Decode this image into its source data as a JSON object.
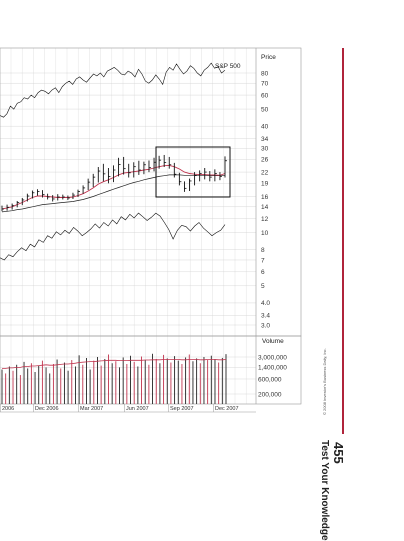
{
  "chart_data": {
    "type": "line",
    "price_axis_label": "Price",
    "volume_axis_label": "Volume",
    "index_label": "S&P 500",
    "price_ticks": [
      80,
      70,
      60,
      50,
      40,
      34,
      30,
      26,
      22,
      19,
      16,
      14,
      12,
      10,
      8,
      7,
      6,
      5,
      4.0,
      3.4,
      3.0
    ],
    "volume_ticks": [
      "3,000,000",
      "1,400,000",
      "600,000",
      "200,000"
    ],
    "volume_tick_values": [
      3000000,
      1400000,
      600000,
      200000
    ],
    "x_ticks": [
      "2006",
      "Dec 2006",
      "Mar 2007",
      "Jun 2007",
      "Sep 2007",
      "Dec 2007"
    ],
    "price_scale": "log",
    "price_range": [
      2.8,
      95
    ],
    "grid": true,
    "candles": [
      {
        "l": 13.2,
        "h": 14.2,
        "c": 13.6
      },
      {
        "l": 13.3,
        "h": 14.4,
        "c": 13.9
      },
      {
        "l": 13.5,
        "h": 14.6,
        "c": 14.2
      },
      {
        "l": 13.9,
        "h": 15.1,
        "c": 14.8
      },
      {
        "l": 14.3,
        "h": 15.7,
        "c": 15.3
      },
      {
        "l": 15.0,
        "h": 16.6,
        "c": 16.1
      },
      {
        "l": 15.6,
        "h": 17.3,
        "c": 16.8
      },
      {
        "l": 16.2,
        "h": 17.6,
        "c": 17.1
      },
      {
        "l": 15.8,
        "h": 17.4,
        "c": 16.4
      },
      {
        "l": 15.4,
        "h": 16.6,
        "c": 15.9
      },
      {
        "l": 15.0,
        "h": 16.3,
        "c": 15.5
      },
      {
        "l": 15.2,
        "h": 16.5,
        "c": 15.9
      },
      {
        "l": 15.4,
        "h": 16.4,
        "c": 15.9
      },
      {
        "l": 15.3,
        "h": 16.2,
        "c": 15.7
      },
      {
        "l": 15.5,
        "h": 16.8,
        "c": 16.3
      },
      {
        "l": 15.9,
        "h": 17.5,
        "c": 17.1
      },
      {
        "l": 16.6,
        "h": 18.5,
        "c": 17.9
      },
      {
        "l": 17.4,
        "h": 20.2,
        "c": 19.3
      },
      {
        "l": 18.1,
        "h": 21.5,
        "c": 20.6
      },
      {
        "l": 19.2,
        "h": 23.5,
        "c": 22.3
      },
      {
        "l": 19.5,
        "h": 24.5,
        "c": 21.5
      },
      {
        "l": 19.0,
        "h": 23.2,
        "c": 20.8
      },
      {
        "l": 19.3,
        "h": 24.0,
        "c": 22.6
      },
      {
        "l": 20.8,
        "h": 26.5,
        "c": 24.3
      },
      {
        "l": 21.3,
        "h": 26.8,
        "c": 23.0
      },
      {
        "l": 20.5,
        "h": 24.5,
        "c": 21.8
      },
      {
        "l": 20.5,
        "h": 25.0,
        "c": 23.6
      },
      {
        "l": 21.2,
        "h": 25.5,
        "c": 22.6
      },
      {
        "l": 21.4,
        "h": 25.2,
        "c": 24.2
      },
      {
        "l": 22.0,
        "h": 25.6,
        "c": 23.3
      },
      {
        "l": 22.2,
        "h": 26.5,
        "c": 25.0
      },
      {
        "l": 23.0,
        "h": 27.2,
        "c": 25.7
      },
      {
        "l": 23.5,
        "h": 27.5,
        "c": 24.9
      },
      {
        "l": 23.0,
        "h": 26.8,
        "c": 24.2
      },
      {
        "l": 20.5,
        "h": 24.8,
        "c": 21.4
      },
      {
        "l": 18.5,
        "h": 21.8,
        "c": 19.4
      },
      {
        "l": 17.0,
        "h": 19.5,
        "c": 17.8
      },
      {
        "l": 17.2,
        "h": 20.2,
        "c": 19.6
      },
      {
        "l": 18.5,
        "h": 22.0,
        "c": 21.1
      },
      {
        "l": 19.5,
        "h": 22.5,
        "c": 21.6
      },
      {
        "l": 20.0,
        "h": 23.2,
        "c": 22.0
      },
      {
        "l": 19.5,
        "h": 22.3,
        "c": 20.6
      },
      {
        "l": 19.5,
        "h": 22.8,
        "c": 21.6
      },
      {
        "l": 19.8,
        "h": 22.0,
        "c": 20.8
      },
      {
        "l": 20.5,
        "h": 27.0,
        "c": 25.5
      }
    ],
    "ma_red": [
      13.6,
      13.8,
      14.0,
      14.4,
      14.8,
      15.3,
      15.8,
      16.1,
      16.1,
      16.0,
      15.9,
      15.8,
      15.8,
      15.8,
      15.9,
      16.2,
      16.6,
      17.2,
      17.9,
      18.8,
      19.4,
      19.9,
      20.5,
      21.2,
      21.7,
      21.9,
      22.1,
      22.3,
      22.6,
      22.8,
      23.2,
      23.6,
      23.9,
      24.0,
      23.6,
      22.9,
      22.0,
      21.6,
      21.4,
      21.3,
      21.3,
      21.2,
      21.2,
      21.1,
      21.6
    ],
    "ma_black": [
      13.1,
      13.2,
      13.3,
      13.5,
      13.6,
      13.8,
      14.0,
      14.2,
      14.4,
      14.5,
      14.6,
      14.7,
      14.8,
      14.9,
      15.0,
      15.2,
      15.4,
      15.7,
      16.0,
      16.4,
      16.8,
      17.2,
      17.6,
      18.0,
      18.4,
      18.8,
      19.2,
      19.5,
      19.9,
      20.2,
      20.5,
      20.8,
      21.0,
      21.2,
      21.2,
      21.2,
      21.1,
      21.0,
      21.0,
      21.0,
      21.0,
      21.0,
      21.0,
      21.0,
      21.1
    ],
    "sp500_line": [
      46,
      45,
      47,
      52,
      50,
      54,
      55,
      58,
      57,
      60,
      58,
      62,
      64,
      63,
      61,
      64,
      66,
      62,
      67,
      70,
      72,
      69,
      74,
      76,
      73,
      71,
      75,
      79,
      77,
      80,
      76,
      82,
      84,
      86,
      83,
      79,
      78,
      82,
      80,
      76,
      84,
      79,
      72,
      70,
      73,
      78,
      74,
      69,
      81,
      86,
      83,
      90,
      84,
      79,
      82,
      88,
      85,
      80,
      77,
      83,
      86,
      91,
      85,
      87,
      80,
      83
    ],
    "rs_line": [
      7.2,
      7.0,
      7.5,
      7.3,
      7.8,
      8.2,
      7.9,
      8.6,
      8.3,
      9.1,
      8.8,
      9.6,
      9.3,
      10.1,
      9.7,
      10.3,
      9.9,
      10.7,
      10.2,
      9.6,
      10.0,
      10.5,
      11.2,
      10.6,
      11.4,
      10.9,
      11.8,
      11.2,
      12.3,
      11.8,
      12.7,
      12.1,
      12.9,
      12.3,
      11.7,
      12.2,
      12.9,
      12.4,
      11.4,
      10.4,
      9.2,
      10.3,
      11.0,
      10.8,
      10.2,
      10.9,
      11.4,
      10.6,
      10.1,
      9.6,
      10.0,
      10.3,
      11.1
    ],
    "volume": [
      {
        "v": 1200000,
        "up": false
      },
      {
        "v": 900000,
        "up": true
      },
      {
        "v": 1500000,
        "up": false
      },
      {
        "v": 1100000,
        "up": true
      },
      {
        "v": 1700000,
        "up": false
      },
      {
        "v": 800000,
        "up": true
      },
      {
        "v": 2100000,
        "up": false
      },
      {
        "v": 1300000,
        "up": false
      },
      {
        "v": 1900000,
        "up": true
      },
      {
        "v": 1000000,
        "up": false
      },
      {
        "v": 1600000,
        "up": false
      },
      {
        "v": 2300000,
        "up": true
      },
      {
        "v": 1400000,
        "up": false
      },
      {
        "v": 900000,
        "up": false
      },
      {
        "v": 1800000,
        "up": true
      },
      {
        "v": 2500000,
        "up": false
      },
      {
        "v": 1300000,
        "up": true
      },
      {
        "v": 2000000,
        "up": false
      },
      {
        "v": 1100000,
        "up": false
      },
      {
        "v": 2400000,
        "up": true
      },
      {
        "v": 1500000,
        "up": false
      },
      {
        "v": 3400000,
        "up": false
      },
      {
        "v": 1700000,
        "up": true
      },
      {
        "v": 2800000,
        "up": false
      },
      {
        "v": 1200000,
        "up": false
      },
      {
        "v": 2300000,
        "up": true
      },
      {
        "v": 3000000,
        "up": false
      },
      {
        "v": 1600000,
        "up": true
      },
      {
        "v": 2600000,
        "up": false
      },
      {
        "v": 3600000,
        "up": true
      },
      {
        "v": 1900000,
        "up": false
      },
      {
        "v": 2200000,
        "up": true
      },
      {
        "v": 1400000,
        "up": false
      },
      {
        "v": 2900000,
        "up": false
      },
      {
        "v": 1800000,
        "up": true
      },
      {
        "v": 3300000,
        "up": false
      },
      {
        "v": 2100000,
        "up": true
      },
      {
        "v": 1500000,
        "up": false
      },
      {
        "v": 3100000,
        "up": true
      },
      {
        "v": 2400000,
        "up": false
      },
      {
        "v": 1700000,
        "up": true
      },
      {
        "v": 3800000,
        "up": false
      },
      {
        "v": 2600000,
        "up": true
      },
      {
        "v": 1900000,
        "up": false
      },
      {
        "v": 3500000,
        "up": true
      },
      {
        "v": 2700000,
        "up": false
      },
      {
        "v": 2000000,
        "up": true
      },
      {
        "v": 3200000,
        "up": false
      },
      {
        "v": 2300000,
        "up": false
      },
      {
        "v": 1800000,
        "up": true
      },
      {
        "v": 2900000,
        "up": false
      },
      {
        "v": 3600000,
        "up": true
      },
      {
        "v": 2200000,
        "up": false
      },
      {
        "v": 2700000,
        "up": false
      },
      {
        "v": 1900000,
        "up": true
      },
      {
        "v": 3000000,
        "up": false
      },
      {
        "v": 2400000,
        "up": true
      },
      {
        "v": 3300000,
        "up": false
      },
      {
        "v": 2600000,
        "up": false
      },
      {
        "v": 2000000,
        "up": true
      },
      {
        "v": 2800000,
        "up": false
      },
      {
        "v": 3700000,
        "up": false
      }
    ],
    "volume_ma": [
      1300000,
      1300000,
      1350000,
      1350000,
      1400000,
      1400000,
      1500000,
      1500000,
      1550000,
      1550000,
      1600000,
      1650000,
      1700000,
      1650000,
      1650000,
      1700000,
      1750000,
      1800000,
      1800000,
      1850000,
      1900000,
      2000000,
      2050000,
      2100000,
      2150000,
      2150000,
      2200000,
      2250000,
      2300000,
      2350000,
      2350000,
      2350000,
      2300000,
      2300000,
      2300000,
      2350000,
      2350000,
      2350000,
      2350000,
      2400000,
      2400000,
      2450000,
      2450000,
      2450000,
      2500000,
      2500000,
      2500000,
      2500000,
      2500000,
      2450000,
      2450000,
      2500000,
      2500000,
      2500000,
      2450000,
      2450000,
      2500000,
      2500000,
      2500000,
      2450000,
      2450000,
      2500000
    ]
  },
  "copyright": "© 2008 Investor's Business Daily, Inc.",
  "section_title": "Test Your Knowledge",
  "page_number": "455",
  "colors": {
    "ma_red": "#c0334d",
    "ma_black": "#222222",
    "accent": "#b0243b",
    "grid": "#cfcfcf"
  }
}
